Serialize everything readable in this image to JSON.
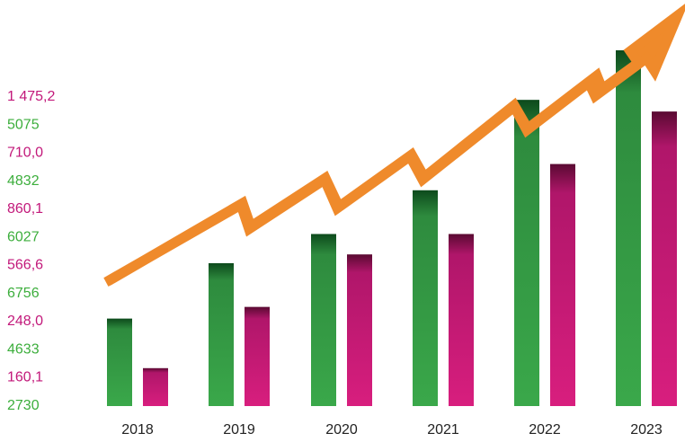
{
  "chart_data": {
    "type": "bar",
    "categories": [
      "2018",
      "2019",
      "2020",
      "2021",
      "2022",
      "2023"
    ],
    "series": [
      {
        "color": "#2e8b3e",
        "values": [
          3.0,
          4.9,
          5.9,
          7.4,
          10.5,
          12.2
        ]
      },
      {
        "color": "#c2186b",
        "values": [
          1.3,
          3.4,
          5.2,
          5.9,
          8.3,
          10.1
        ]
      }
    ],
    "y_tick_labels": [
      {
        "text": "2730",
        "color": "#3cae3c"
      },
      {
        "text": "160,1",
        "color": "#c2187a"
      },
      {
        "text": "4633",
        "color": "#3cae3c"
      },
      {
        "text": "248,0",
        "color": "#c2187a"
      },
      {
        "text": "6756",
        "color": "#3cae3c"
      },
      {
        "text": "566,6",
        "color": "#c2187a"
      },
      {
        "text": "6027",
        "color": "#3cae3c"
      },
      {
        "text": "860,1",
        "color": "#c2187a"
      },
      {
        "text": "4832",
        "color": "#3cae3c"
      },
      {
        "text": "710,0",
        "color": "#c2187a"
      },
      {
        "text": "5075",
        "color": "#3cae3c"
      },
      {
        "text": "1 475,2",
        "color": "#c2187a"
      }
    ],
    "ylim": [
      0,
      13
    ],
    "trend_arrow": {
      "color": "#ef8a2b",
      "direction": "up-right"
    },
    "grid": false,
    "legend": "none",
    "title": "",
    "xlabel": "",
    "ylabel": ""
  }
}
